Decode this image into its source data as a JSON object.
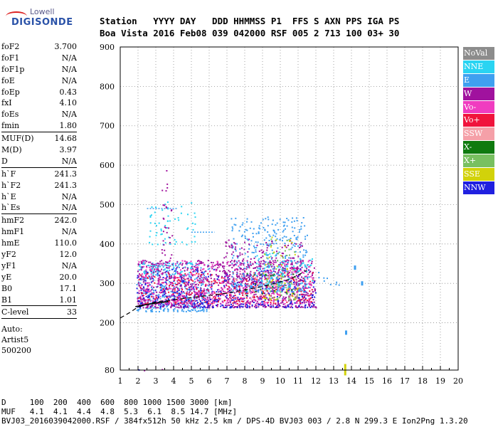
{
  "logo": {
    "line1": "Lowell",
    "line2": "DIGISONDE"
  },
  "header": {
    "row1": "Station   YYYY DAY   DDD HHMMSS P1  FFS S AXN PPS IGA PS",
    "row2": "Boa Vista 2016 Feb08 039 042000 RSF 005 2 713 100 03+ 30"
  },
  "params_groups": [
    [
      {
        "label": "foF2",
        "value": "3.700"
      },
      {
        "label": "foF1",
        "value": "N/A"
      },
      {
        "label": "foF1p",
        "value": "N/A"
      },
      {
        "label": "foE",
        "value": "N/A"
      },
      {
        "label": "foEp",
        "value": "0.43"
      },
      {
        "label": "fxI",
        "value": "4.10"
      },
      {
        "label": "foEs",
        "value": "N/A"
      },
      {
        "label": "fmin",
        "value": "1.80"
      }
    ],
    [
      {
        "label": "MUF(D)",
        "value": "14.68"
      },
      {
        "label": "M(D)",
        "value": "3.97"
      },
      {
        "label": "D",
        "value": "N/A"
      }
    ],
    [
      {
        "label": "h`F",
        "value": "241.3"
      },
      {
        "label": "h`F2",
        "value": "241.3"
      },
      {
        "label": "h`E",
        "value": "N/A"
      },
      {
        "label": "h`Es",
        "value": "N/A"
      }
    ],
    [
      {
        "label": "hmF2",
        "value": "242.0"
      },
      {
        "label": "hmF1",
        "value": "N/A"
      },
      {
        "label": "hmE",
        "value": "110.0"
      },
      {
        "label": "yF2",
        "value": "12.0"
      },
      {
        "label": "yF1",
        "value": "N/A"
      },
      {
        "label": "yE",
        "value": "20.0"
      },
      {
        "label": "B0",
        "value": "17.1"
      },
      {
        "label": "B1",
        "value": "1.01"
      }
    ],
    [
      {
        "label": "C-level",
        "value": "33"
      }
    ]
  ],
  "auto": [
    "Auto:",
    "Artist5",
    "500200"
  ],
  "legend": [
    {
      "label": "NoVal",
      "color": "#8c8c8c"
    },
    {
      "label": "NNE",
      "color": "#2ad4f2"
    },
    {
      "label": "E",
      "color": "#3fa0f0"
    },
    {
      "label": "W",
      "color": "#a0129e"
    },
    {
      "label": "Vo-",
      "color": "#f03cc0"
    },
    {
      "label": "Vo+",
      "color": "#f0143c"
    },
    {
      "label": "SSW",
      "color": "#f5a0a8"
    },
    {
      "label": "X-",
      "color": "#0f7a0f"
    },
    {
      "label": "X+",
      "color": "#78c060"
    },
    {
      "label": "SSE",
      "color": "#d2d20a"
    },
    {
      "label": "NNW",
      "color": "#2020e0"
    }
  ],
  "footer": {
    "row1": "D     100  200  400  600  800 1000 1500 3000 [km]",
    "row2": "MUF   4.1  4.1  4.4  4.8  5.3  6.1  8.5 14.7 [MHz]",
    "row3": "BVJ03_2016039042000.RSF / 384fx512h 50 kHz 2.5 km / DPS-4D BVJ03 003 / 2.8 N 299.3 E Ion2Png 1.3.20"
  },
  "chart_data": {
    "type": "scatter",
    "xlim": [
      1,
      20
    ],
    "ylim": [
      80,
      900
    ],
    "x_ticks": [
      "1",
      "2",
      "3",
      "4",
      "5",
      "6",
      "7",
      "8",
      "9",
      "10",
      "11",
      "12",
      "13",
      "14",
      "15",
      "16",
      "17",
      "18",
      "19",
      "20"
    ],
    "y_ticks": [
      "900",
      "800",
      "700",
      "600",
      "500",
      "400",
      "300",
      "200",
      "80"
    ],
    "grid": true,
    "legend_position": "right",
    "trace_F2": [
      [
        1.85,
        241
      ],
      [
        2.2,
        244
      ],
      [
        2.6,
        247
      ],
      [
        3.0,
        250
      ],
      [
        3.4,
        252
      ],
      [
        3.7,
        254
      ]
    ],
    "model_profile": [
      [
        1.0,
        212
      ],
      [
        1.5,
        225
      ],
      [
        2.0,
        240
      ],
      [
        3.0,
        253
      ],
      [
        5.0,
        264
      ],
      [
        7.0,
        275
      ],
      [
        9.0,
        292
      ],
      [
        10.5,
        310
      ],
      [
        11.5,
        333
      ]
    ],
    "echo_regions": [
      {
        "series": "E",
        "x": [
          1.9,
          6.0
        ],
        "y": [
          230,
          355
        ],
        "density": 0.9
      },
      {
        "series": "NNE",
        "x": [
          2.0,
          5.0
        ],
        "y": [
          320,
          360
        ],
        "density": 0.6
      },
      {
        "series": "W",
        "x": [
          1.9,
          12.0
        ],
        "y": [
          240,
          360
        ],
        "density": 1.0
      },
      {
        "series": "NNW",
        "x": [
          1.9,
          12.0
        ],
        "y": [
          240,
          340
        ],
        "density": 0.5
      },
      {
        "series": "Vo+",
        "x": [
          2.0,
          11.8
        ],
        "y": [
          250,
          330
        ],
        "density": 0.4
      },
      {
        "series": "Vo-",
        "x": [
          2.0,
          11.8
        ],
        "y": [
          250,
          360
        ],
        "density": 0.4
      },
      {
        "series": "NNE",
        "x": [
          2.6,
          5.2
        ],
        "y": [
          400,
          510
        ],
        "density": 0.25
      },
      {
        "series": "E",
        "x": [
          7.2,
          11.5
        ],
        "y": [
          280,
          470
        ],
        "density": 0.55
      },
      {
        "series": "W",
        "x": [
          6.8,
          11.2
        ],
        "y": [
          300,
          420
        ],
        "density": 0.45
      },
      {
        "series": "NNE",
        "x": [
          8.6,
          11.8
        ],
        "y": [
          290,
          380
        ],
        "density": 0.35
      },
      {
        "series": "E",
        "x": [
          12.0,
          13.3
        ],
        "y": [
          290,
          330
        ],
        "density": 0.2
      },
      {
        "series": "W",
        "x": [
          3.3,
          3.9
        ],
        "y": [
          360,
          590
        ],
        "density": 0.25
      },
      {
        "series": "X+",
        "x": [
          9.0,
          11.0
        ],
        "y": [
          260,
          420
        ],
        "density": 0.25
      },
      {
        "series": "SSE",
        "x": [
          9.0,
          11.0
        ],
        "y": [
          260,
          420
        ],
        "density": 0.15
      },
      {
        "series": "SSW",
        "x": [
          7.0,
          11.0
        ],
        "y": [
          260,
          330
        ],
        "density": 0.2
      },
      {
        "series": "X-",
        "x": [
          8.0,
          10.8
        ],
        "y": [
          270,
          330
        ],
        "density": 0.15
      },
      {
        "series": "NNW",
        "x": [
          1.9,
          2.3
        ],
        "y": [
          80,
          83
        ],
        "density": 0.8
      },
      {
        "series": "W",
        "x": [
          2.3,
          4.0
        ],
        "y": [
          80,
          83
        ],
        "density": 0.5
      }
    ],
    "echo_lines": [
      {
        "series": "E",
        "x": [
          2.5,
          4.2
        ],
        "y": 490
      },
      {
        "series": "NNE",
        "x": [
          2.5,
          4.2
        ],
        "y": 345
      },
      {
        "series": "E",
        "x": [
          5.0,
          6.3
        ],
        "y": 430
      }
    ],
    "isolated_echoes": [
      {
        "series": "E",
        "x": 13.7,
        "y": 175
      },
      {
        "series": "SSE",
        "x": 13.65,
        "y": 90
      },
      {
        "series": "E",
        "x": 14.6,
        "y": 300
      },
      {
        "series": "E",
        "x": 14.2,
        "y": 340
      }
    ]
  }
}
